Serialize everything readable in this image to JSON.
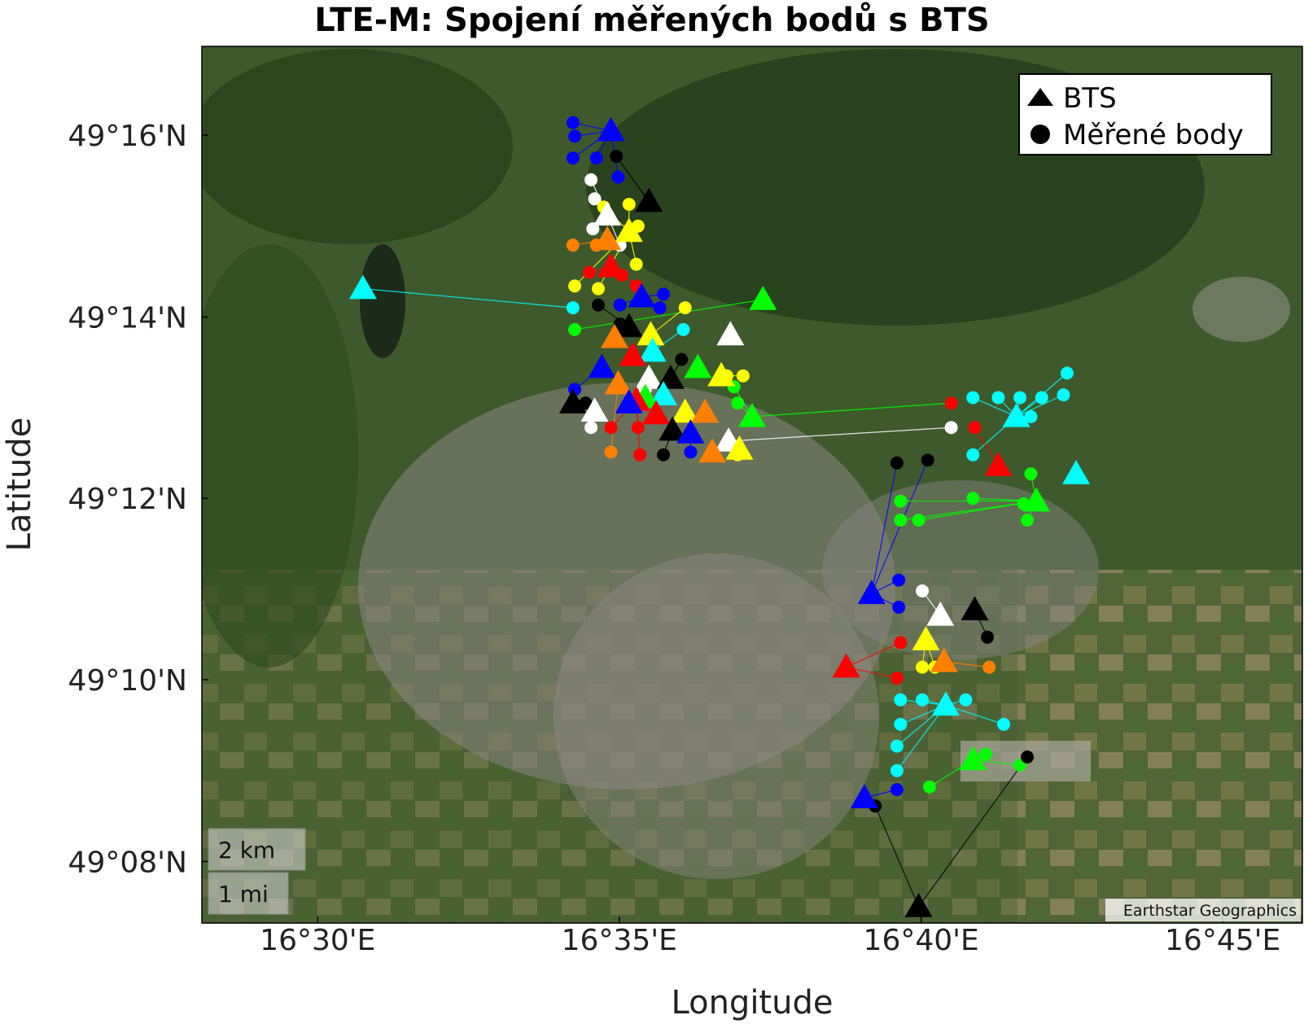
{
  "chart_data": {
    "type": "scatter",
    "title": "LTE-M: Spojení měřených bodů s BTS",
    "xlabel": "Longitude",
    "ylabel": "Latitude",
    "xlim": [
      16.468,
      16.772
    ],
    "ylim": [
      49.122,
      49.283
    ],
    "x_ticks": [
      {
        "value": 16.5,
        "label": "16°30'E"
      },
      {
        "value": 16.5833,
        "label": "16°35'E"
      },
      {
        "value": 16.6667,
        "label": "16°40'E"
      },
      {
        "value": 16.75,
        "label": "16°45'E"
      }
    ],
    "y_ticks": [
      {
        "value": 49.1333,
        "label": "49°08'N"
      },
      {
        "value": 49.1667,
        "label": "49°10'N"
      },
      {
        "value": 49.2,
        "label": "49°12'N"
      },
      {
        "value": 49.2333,
        "label": "49°14'N"
      },
      {
        "value": 49.2667,
        "label": "49°16'N"
      }
    ],
    "legend": {
      "position": "top-right",
      "entries": [
        "BTS",
        "Měřené body"
      ]
    },
    "scale_bar": {
      "km_label": "2 km",
      "mi_label": "1 mi"
    },
    "attribution": "Earthstar Geographics",
    "basemap": "satellite",
    "bts": [
      {
        "lon": 16.581,
        "lat": 49.2675,
        "color": "#0000ff"
      },
      {
        "lon": 16.5915,
        "lat": 49.2545,
        "color": "#000000"
      },
      {
        "lon": 16.58,
        "lat": 49.252,
        "color": "#ffffff"
      },
      {
        "lon": 16.586,
        "lat": 49.249,
        "color": "#ffff00"
      },
      {
        "lon": 16.58,
        "lat": 49.2475,
        "color": "#ff7f00"
      },
      {
        "lon": 16.581,
        "lat": 49.2425,
        "color": "#ff0000"
      },
      {
        "lon": 16.5125,
        "lat": 49.2385,
        "color": "#00ffff"
      },
      {
        "lon": 16.5895,
        "lat": 49.237,
        "color": "#0000ff"
      },
      {
        "lon": 16.623,
        "lat": 49.2365,
        "color": "#00ff00"
      },
      {
        "lon": 16.586,
        "lat": 49.2315,
        "color": "#000000"
      },
      {
        "lon": 16.614,
        "lat": 49.23,
        "color": "#ffffff"
      },
      {
        "lon": 16.592,
        "lat": 49.23,
        "color": "#ffff00"
      },
      {
        "lon": 16.582,
        "lat": 49.2295,
        "color": "#ff7f00"
      },
      {
        "lon": 16.5925,
        "lat": 49.227,
        "color": "#00ffff"
      },
      {
        "lon": 16.587,
        "lat": 49.2262,
        "color": "#ff0000"
      },
      {
        "lon": 16.5785,
        "lat": 49.224,
        "color": "#0000ff"
      },
      {
        "lon": 16.605,
        "lat": 49.224,
        "color": "#00ff00"
      },
      {
        "lon": 16.6115,
        "lat": 49.2225,
        "color": "#ffff00"
      },
      {
        "lon": 16.5915,
        "lat": 49.222,
        "color": "#ffffff"
      },
      {
        "lon": 16.5975,
        "lat": 49.222,
        "color": "#000000"
      },
      {
        "lon": 16.583,
        "lat": 49.221,
        "color": "#ff7f00"
      },
      {
        "lon": 16.5955,
        "lat": 49.219,
        "color": "#00ffff"
      },
      {
        "lon": 16.5905,
        "lat": 49.2185,
        "color": "#00ff00"
      },
      {
        "lon": 16.588,
        "lat": 49.218,
        "color": "#ff0000"
      },
      {
        "lon": 16.5705,
        "lat": 49.2175,
        "color": "#000000"
      },
      {
        "lon": 16.586,
        "lat": 49.2175,
        "color": "#0000ff"
      },
      {
        "lon": 16.5765,
        "lat": 49.216,
        "color": "#ffffff"
      },
      {
        "lon": 16.6015,
        "lat": 49.2158,
        "color": "#ffff00"
      },
      {
        "lon": 16.607,
        "lat": 49.2158,
        "color": "#ff7f00"
      },
      {
        "lon": 16.5935,
        "lat": 49.2155,
        "color": "#ff0000"
      },
      {
        "lon": 16.62,
        "lat": 49.215,
        "color": "#00ff00"
      },
      {
        "lon": 16.693,
        "lat": 49.215,
        "color": "#00ffff"
      },
      {
        "lon": 16.598,
        "lat": 49.2125,
        "color": "#000000"
      },
      {
        "lon": 16.603,
        "lat": 49.212,
        "color": "#0000ff"
      },
      {
        "lon": 16.6135,
        "lat": 49.2105,
        "color": "#ffffff"
      },
      {
        "lon": 16.6165,
        "lat": 49.209,
        "color": "#ffff00"
      },
      {
        "lon": 16.609,
        "lat": 49.2085,
        "color": "#ff7f00"
      },
      {
        "lon": 16.688,
        "lat": 49.206,
        "color": "#ff0000"
      },
      {
        "lon": 16.7095,
        "lat": 49.2045,
        "color": "#00ffff"
      },
      {
        "lon": 16.6985,
        "lat": 49.1995,
        "color": "#00ff00"
      },
      {
        "lon": 16.653,
        "lat": 49.1825,
        "color": "#0000ff"
      },
      {
        "lon": 16.6815,
        "lat": 49.1795,
        "color": "#000000"
      },
      {
        "lon": 16.672,
        "lat": 49.1785,
        "color": "#ffffff"
      },
      {
        "lon": 16.668,
        "lat": 49.174,
        "color": "#ffff00"
      },
      {
        "lon": 16.646,
        "lat": 49.169,
        "color": "#ff0000"
      },
      {
        "lon": 16.673,
        "lat": 49.17,
        "color": "#ff7f00"
      },
      {
        "lon": 16.6735,
        "lat": 49.162,
        "color": "#00ffff"
      },
      {
        "lon": 16.681,
        "lat": 49.152,
        "color": "#00ff00"
      },
      {
        "lon": 16.651,
        "lat": 49.145,
        "color": "#0000ff"
      },
      {
        "lon": 16.666,
        "lat": 49.125,
        "color": "#000000"
      }
    ],
    "measured_points": [
      {
        "lon": 16.5705,
        "lat": 49.269,
        "color": "#0000ff",
        "bts": 0
      },
      {
        "lon": 16.571,
        "lat": 49.2665,
        "color": "#0000ff",
        "bts": 0
      },
      {
        "lon": 16.5705,
        "lat": 49.2625,
        "color": "#0000ff",
        "bts": 0
      },
      {
        "lon": 16.577,
        "lat": 49.2625,
        "color": "#0000ff",
        "bts": 0
      },
      {
        "lon": 16.583,
        "lat": 49.259,
        "color": "#0000ff",
        "bts": 0
      },
      {
        "lon": 16.5825,
        "lat": 49.2628,
        "color": "#000000",
        "bts": 1
      },
      {
        "lon": 16.5755,
        "lat": 49.2585,
        "color": "#ffffff",
        "bts": 2
      },
      {
        "lon": 16.5765,
        "lat": 49.255,
        "color": "#ffffff",
        "bts": 2
      },
      {
        "lon": 16.576,
        "lat": 49.2495,
        "color": "#ffffff",
        "bts": 2
      },
      {
        "lon": 16.5835,
        "lat": 49.2465,
        "color": "#ffffff",
        "bts": 2
      },
      {
        "lon": 16.579,
        "lat": 49.2535,
        "color": "#ffff00",
        "bts": 3
      },
      {
        "lon": 16.586,
        "lat": 49.254,
        "color": "#ffff00",
        "bts": 3
      },
      {
        "lon": 16.5885,
        "lat": 49.25,
        "color": "#ffff00",
        "bts": 3
      },
      {
        "lon": 16.588,
        "lat": 49.243,
        "color": "#ffff00",
        "bts": 3
      },
      {
        "lon": 16.571,
        "lat": 49.239,
        "color": "#ffff00",
        "bts": 3
      },
      {
        "lon": 16.5775,
        "lat": 49.2385,
        "color": "#ffff00",
        "bts": 3
      },
      {
        "lon": 16.5705,
        "lat": 49.2465,
        "color": "#ff7f00",
        "bts": 4
      },
      {
        "lon": 16.577,
        "lat": 49.2465,
        "color": "#ff7f00",
        "bts": 4
      },
      {
        "lon": 16.575,
        "lat": 49.2415,
        "color": "#ff0000",
        "bts": 5
      },
      {
        "lon": 16.584,
        "lat": 49.241,
        "color": "#ff0000",
        "bts": 5
      },
      {
        "lon": 16.588,
        "lat": 49.239,
        "color": "#ff0000",
        "bts": 5
      },
      {
        "lon": 16.5705,
        "lat": 49.235,
        "color": "#00ffff",
        "bts": 6
      },
      {
        "lon": 16.5835,
        "lat": 49.2355,
        "color": "#0000ff",
        "bts": 7
      },
      {
        "lon": 16.5945,
        "lat": 49.235,
        "color": "#0000ff",
        "bts": 7
      },
      {
        "lon": 16.5955,
        "lat": 49.2375,
        "color": "#0000ff",
        "bts": 7
      },
      {
        "lon": 16.571,
        "lat": 49.231,
        "color": "#00ff00",
        "bts": 8
      },
      {
        "lon": 16.6015,
        "lat": 49.235,
        "color": "#ffff00",
        "bts": 11
      },
      {
        "lon": 16.5775,
        "lat": 49.2355,
        "color": "#000000",
        "bts": 9
      },
      {
        "lon": 16.5835,
        "lat": 49.232,
        "color": "#000000",
        "bts": 9
      },
      {
        "lon": 16.601,
        "lat": 49.231,
        "color": "#00ffff",
        "bts": 13
      },
      {
        "lon": 16.6005,
        "lat": 49.2255,
        "color": "#000000",
        "bts": 19
      },
      {
        "lon": 16.571,
        "lat": 49.22,
        "color": "#0000ff",
        "bts": 15
      },
      {
        "lon": 16.5905,
        "lat": 49.22,
        "color": "#ffffff",
        "bts": 18
      },
      {
        "lon": 16.574,
        "lat": 49.2175,
        "color": "#000000",
        "bts": 24
      },
      {
        "lon": 16.5755,
        "lat": 49.213,
        "color": "#ffffff",
        "bts": 26
      },
      {
        "lon": 16.581,
        "lat": 49.213,
        "color": "#ff0000",
        "bts": 23
      },
      {
        "lon": 16.5885,
        "lat": 49.213,
        "color": "#ff0000",
        "bts": 23
      },
      {
        "lon": 16.581,
        "lat": 49.2085,
        "color": "#ff7f00",
        "bts": 20
      },
      {
        "lon": 16.589,
        "lat": 49.208,
        "color": "#ff0000",
        "bts": 23
      },
      {
        "lon": 16.5955,
        "lat": 49.208,
        "color": "#000000",
        "bts": 32
      },
      {
        "lon": 16.603,
        "lat": 49.2085,
        "color": "#0000ff",
        "bts": 33
      },
      {
        "lon": 16.616,
        "lat": 49.2175,
        "color": "#00ff00",
        "bts": 30
      },
      {
        "lon": 16.615,
        "lat": 49.2205,
        "color": "#00ff00",
        "bts": 30
      },
      {
        "lon": 16.6175,
        "lat": 49.2225,
        "color": "#ffff00",
        "bts": 17
      },
      {
        "lon": 16.613,
        "lat": 49.2225,
        "color": "#ffff00",
        "bts": 17
      },
      {
        "lon": 16.616,
        "lat": 49.208,
        "color": "#ffff00",
        "bts": 35
      },
      {
        "lon": 16.681,
        "lat": 49.2185,
        "color": "#00ffff",
        "bts": 31
      },
      {
        "lon": 16.688,
        "lat": 49.2185,
        "color": "#00ffff",
        "bts": 31
      },
      {
        "lon": 16.694,
        "lat": 49.2185,
        "color": "#00ffff",
        "bts": 31
      },
      {
        "lon": 16.7,
        "lat": 49.2185,
        "color": "#00ffff",
        "bts": 31
      },
      {
        "lon": 16.706,
        "lat": 49.219,
        "color": "#00ffff",
        "bts": 31
      },
      {
        "lon": 16.707,
        "lat": 49.223,
        "color": "#00ffff",
        "bts": 31
      },
      {
        "lon": 16.697,
        "lat": 49.215,
        "color": "#00ffff",
        "bts": 31
      },
      {
        "lon": 16.681,
        "lat": 49.208,
        "color": "#00ffff",
        "bts": 31
      },
      {
        "lon": 16.675,
        "lat": 49.2175,
        "color": "#ff0000",
        "bts": 30
      },
      {
        "lon": 16.6815,
        "lat": 49.213,
        "color": "#ff0000",
        "bts": 37
      },
      {
        "lon": 16.675,
        "lat": 49.213,
        "color": "#ffffff",
        "bts": 34
      },
      {
        "lon": 16.66,
        "lat": 49.2065,
        "color": "#000000",
        "bts": 40
      },
      {
        "lon": 16.6685,
        "lat": 49.207,
        "color": "#000000",
        "bts": 40
      },
      {
        "lon": 16.681,
        "lat": 49.2,
        "color": "#00ff00",
        "bts": 39
      },
      {
        "lon": 16.661,
        "lat": 49.1995,
        "color": "#00ff00",
        "bts": 39
      },
      {
        "lon": 16.661,
        "lat": 49.196,
        "color": "#00ff00",
        "bts": 39
      },
      {
        "lon": 16.666,
        "lat": 49.196,
        "color": "#00ff00",
        "bts": 39
      },
      {
        "lon": 16.695,
        "lat": 49.199,
        "color": "#00ff00",
        "bts": 39
      },
      {
        "lon": 16.696,
        "lat": 49.196,
        "color": "#00ff00",
        "bts": 39
      },
      {
        "lon": 16.697,
        "lat": 49.2045,
        "color": "#00ff00",
        "bts": 39
      },
      {
        "lon": 16.6605,
        "lat": 49.185,
        "color": "#0000ff",
        "bts": 40
      },
      {
        "lon": 16.6605,
        "lat": 49.18,
        "color": "#0000ff",
        "bts": 40
      },
      {
        "lon": 16.667,
        "lat": 49.183,
        "color": "#ffffff",
        "bts": 42
      },
      {
        "lon": 16.685,
        "lat": 49.1745,
        "color": "#000000",
        "bts": 41
      },
      {
        "lon": 16.661,
        "lat": 49.1735,
        "color": "#ff0000",
        "bts": 44
      },
      {
        "lon": 16.66,
        "lat": 49.167,
        "color": "#ff0000",
        "bts": 44
      },
      {
        "lon": 16.667,
        "lat": 49.169,
        "color": "#ffff00",
        "bts": 43
      },
      {
        "lon": 16.6705,
        "lat": 49.169,
        "color": "#ffff00",
        "bts": 43
      },
      {
        "lon": 16.6855,
        "lat": 49.169,
        "color": "#ff7f00",
        "bts": 45
      },
      {
        "lon": 16.661,
        "lat": 49.163,
        "color": "#00ffff",
        "bts": 46
      },
      {
        "lon": 16.667,
        "lat": 49.163,
        "color": "#00ffff",
        "bts": 46
      },
      {
        "lon": 16.679,
        "lat": 49.163,
        "color": "#00ffff",
        "bts": 46
      },
      {
        "lon": 16.661,
        "lat": 49.1585,
        "color": "#00ffff",
        "bts": 46
      },
      {
        "lon": 16.6895,
        "lat": 49.1585,
        "color": "#00ffff",
        "bts": 46
      },
      {
        "lon": 16.66,
        "lat": 49.1545,
        "color": "#00ffff",
        "bts": 46
      },
      {
        "lon": 16.66,
        "lat": 49.15,
        "color": "#00ffff",
        "bts": 46
      },
      {
        "lon": 16.6845,
        "lat": 49.153,
        "color": "#00ff00",
        "bts": 47
      },
      {
        "lon": 16.694,
        "lat": 49.151,
        "color": "#00ff00",
        "bts": 47
      },
      {
        "lon": 16.669,
        "lat": 49.147,
        "color": "#00ff00",
        "bts": 47
      },
      {
        "lon": 16.66,
        "lat": 49.1465,
        "color": "#0000ff",
        "bts": 48
      },
      {
        "lon": 16.654,
        "lat": 49.1435,
        "color": "#000000",
        "bts": 49
      },
      {
        "lon": 16.696,
        "lat": 49.1525,
        "color": "#000000",
        "bts": 49
      }
    ]
  }
}
